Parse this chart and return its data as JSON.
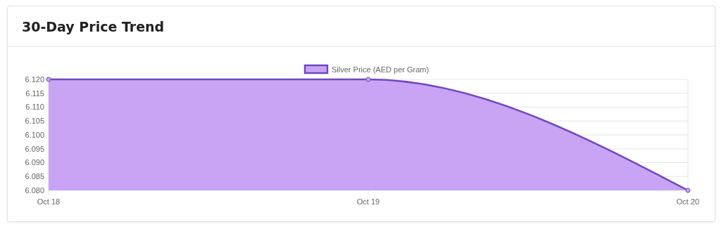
{
  "chart_data": {
    "type": "area",
    "title": "30-Day Price Trend",
    "categories": [
      "Oct 18",
      "Oct 19",
      "Oct 20"
    ],
    "series": [
      {
        "name": "Silver Price (AED per Gram)",
        "color": "#7048c0",
        "values": [
          6.12,
          6.12,
          6.08
        ]
      }
    ],
    "ylim": [
      6.08,
      6.12
    ],
    "yticks": [
      {
        "value": 6.08,
        "label": "6.080"
      },
      {
        "value": 6.085,
        "label": "6.085"
      },
      {
        "value": 6.09,
        "label": "6.090"
      },
      {
        "value": 6.095,
        "label": "6.095"
      },
      {
        "value": 6.1,
        "label": "6.100"
      },
      {
        "value": 6.105,
        "label": "6.105"
      },
      {
        "value": 6.11,
        "label": "6.110"
      },
      {
        "value": 6.115,
        "label": "6.115"
      },
      {
        "value": 6.12,
        "label": "6.120"
      }
    ],
    "grid": true,
    "legend": "top",
    "marker": "circle"
  }
}
